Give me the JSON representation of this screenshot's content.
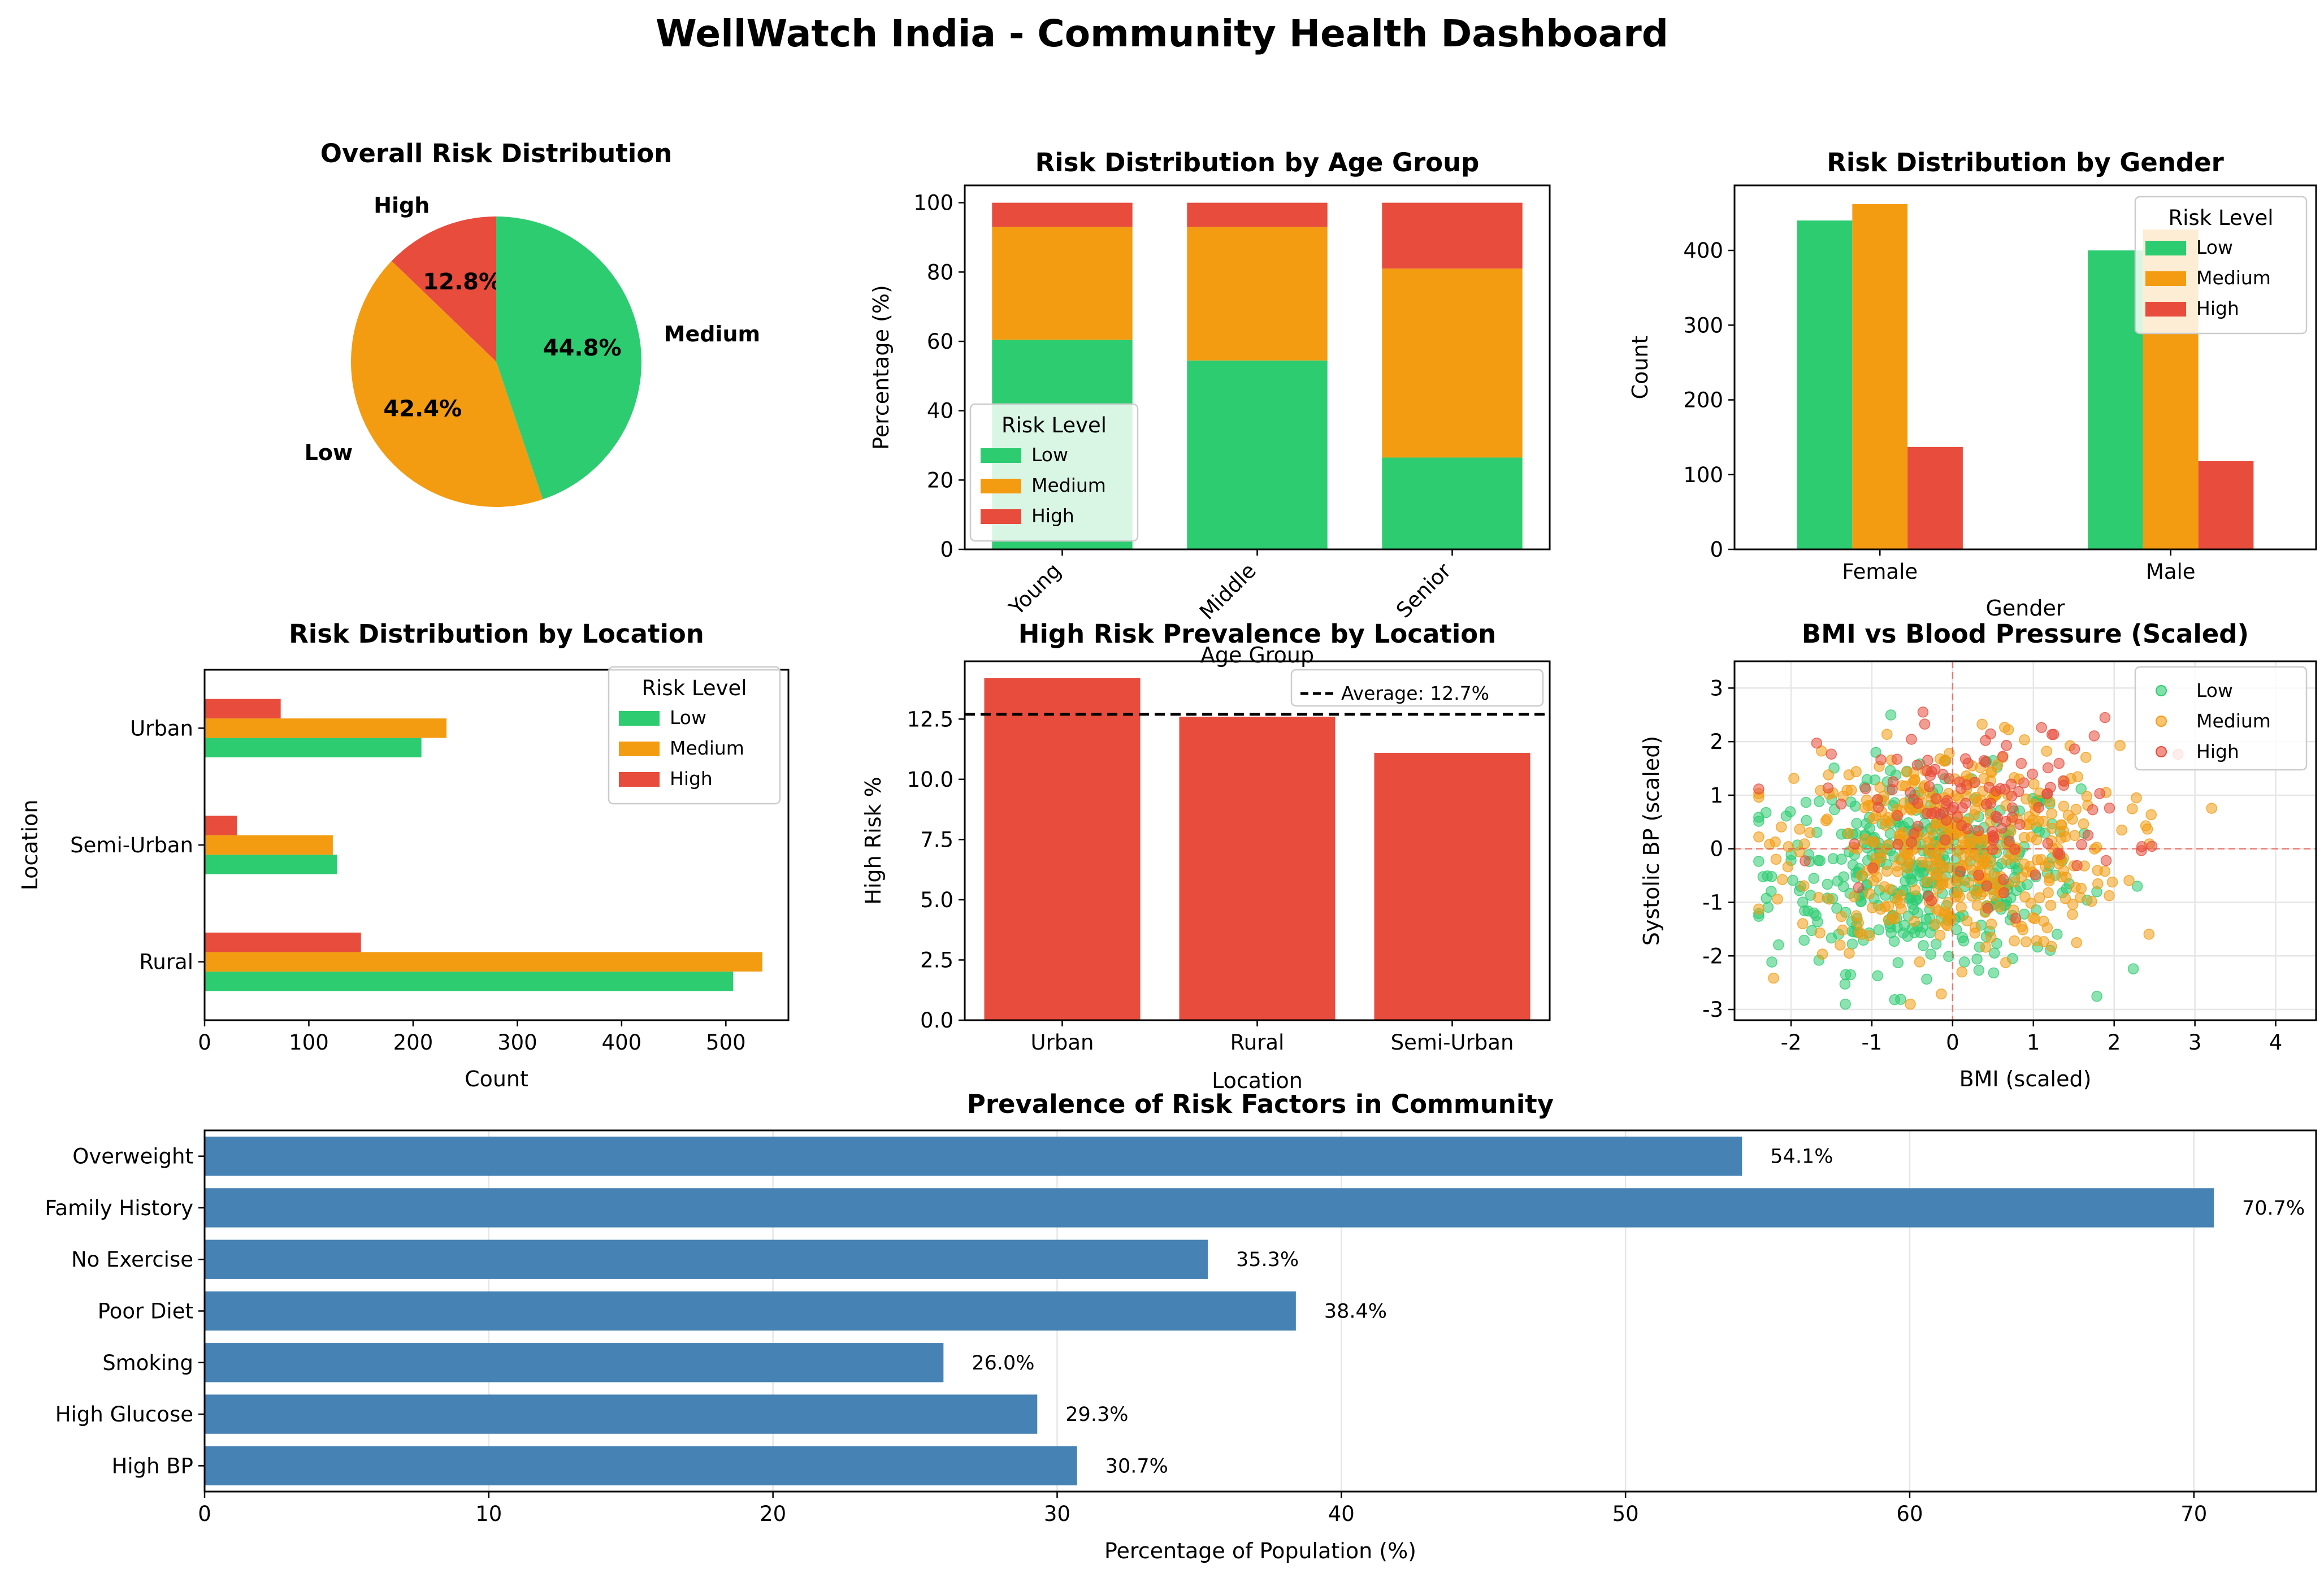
{
  "suptitle": "WellWatch India - Community Health Dashboard",
  "colors": {
    "Low": "#2ecc71",
    "Medium": "#f39c12",
    "High": "#e74c3c",
    "bar_blue": "#4682b4"
  },
  "chart_data": [
    {
      "id": "pie",
      "type": "pie",
      "title": "Overall Risk Distribution",
      "slices": [
        {
          "label": "High",
          "pct": "12.8%",
          "value": 12.8,
          "color": "#e74c3c"
        },
        {
          "label": "Low",
          "pct": "42.4%",
          "value": 42.4,
          "color": "#f39c12"
        },
        {
          "label": "Medium",
          "pct": "44.8%",
          "value": 44.8,
          "color": "#2ecc71"
        }
      ]
    },
    {
      "id": "age",
      "type": "bar",
      "stacked": true,
      "title": "Risk Distribution by Age Group",
      "xlabel": "Age Group",
      "ylabel": "Percentage (%)",
      "ylim": [
        0,
        105
      ],
      "yticks": [
        0,
        20,
        40,
        60,
        80,
        100
      ],
      "categories": [
        "Young",
        "Middle",
        "Senior"
      ],
      "legend_title": "Risk Level",
      "legend_position": "lower-left",
      "series": [
        {
          "name": "Low",
          "values": [
            60.5,
            54.5,
            26.5
          ]
        },
        {
          "name": "Medium",
          "values": [
            32.5,
            38.5,
            54.5
          ]
        },
        {
          "name": "High",
          "values": [
            7.0,
            7.0,
            19.0
          ]
        }
      ]
    },
    {
      "id": "gender",
      "type": "bar",
      "title": "Risk Distribution by Gender",
      "xlabel": "Gender",
      "ylabel": "Count",
      "ylim": [
        0,
        487
      ],
      "yticks": [
        0,
        100,
        200,
        300,
        400
      ],
      "categories": [
        "Female",
        "Male"
      ],
      "legend_title": "Risk Level",
      "legend_position": "top-right",
      "series": [
        {
          "name": "Low",
          "values": [
            440,
            400
          ]
        },
        {
          "name": "Medium",
          "values": [
            462,
            428
          ]
        },
        {
          "name": "High",
          "values": [
            137,
            118
          ]
        }
      ]
    },
    {
      "id": "location",
      "type": "bar",
      "orientation": "horizontal",
      "title": "Risk Distribution by Location",
      "xlabel": "Count",
      "ylabel": "Location",
      "xlim": [
        0,
        560
      ],
      "xticks": [
        0,
        100,
        200,
        300,
        400,
        500
      ],
      "categories": [
        "Rural",
        "Semi-Urban",
        "Urban"
      ],
      "legend_title": "Risk Level",
      "legend_position": "top-right",
      "series": [
        {
          "name": "Low",
          "values": [
            507,
            127,
            208
          ]
        },
        {
          "name": "Medium",
          "values": [
            535,
            123,
            232
          ]
        },
        {
          "name": "High",
          "values": [
            150,
            31,
            73
          ]
        }
      ]
    },
    {
      "id": "highrisk",
      "type": "bar",
      "title": "High Risk Prevalence by Location",
      "xlabel": "Location",
      "ylabel": "High Risk %",
      "ylim": [
        0,
        14.9
      ],
      "yticks": [
        0.0,
        2.5,
        5.0,
        7.5,
        10.0,
        12.5
      ],
      "categories": [
        "Urban",
        "Rural",
        "Semi-Urban"
      ],
      "values": [
        14.2,
        12.6,
        11.1
      ],
      "average": 12.7,
      "legend_label": "Average: 12.7%",
      "legend_position": "top-right"
    },
    {
      "id": "scatter",
      "type": "scatter",
      "title": "BMI vs Blood Pressure (Scaled)",
      "xlabel": "BMI (scaled)",
      "ylabel": "Systolic BP (scaled)",
      "xlim": [
        -2.7,
        4.5
      ],
      "ylim": [
        -3.2,
        3.5
      ],
      "xticks": [
        -2,
        -1,
        0,
        1,
        2,
        3,
        4
      ],
      "yticks": [
        -3,
        -2,
        -1,
        0,
        1,
        2,
        3
      ],
      "grid": true,
      "legend_position": "top-right",
      "series": [
        {
          "name": "Low",
          "n": 420,
          "mx": -0.35,
          "my": -0.45,
          "sx": 0.95,
          "sy": 0.9
        },
        {
          "name": "Medium",
          "n": 450,
          "mx": 0.05,
          "my": 0.0,
          "sx": 1.0,
          "sy": 0.95
        },
        {
          "name": "High",
          "n": 130,
          "mx": 0.3,
          "my": 0.8,
          "sx": 0.95,
          "sy": 0.8
        }
      ]
    },
    {
      "id": "factors",
      "type": "bar",
      "orientation": "horizontal",
      "title": "Prevalence of Risk Factors in Community",
      "xlabel": "Percentage of Population (%)",
      "xlim": [
        0,
        74.3
      ],
      "xticks": [
        0,
        10,
        20,
        30,
        40,
        50,
        60,
        70
      ],
      "grid": true,
      "categories": [
        "Overweight",
        "Family History",
        "No Exercise",
        "Poor Diet",
        "Smoking",
        "High Glucose",
        "High BP"
      ],
      "values": [
        54.1,
        70.7,
        35.3,
        38.4,
        26.0,
        29.3,
        30.7
      ],
      "labels": [
        "54.1%",
        "70.7%",
        "35.3%",
        "38.4%",
        "26.0%",
        "29.3%",
        "30.7%"
      ]
    }
  ]
}
